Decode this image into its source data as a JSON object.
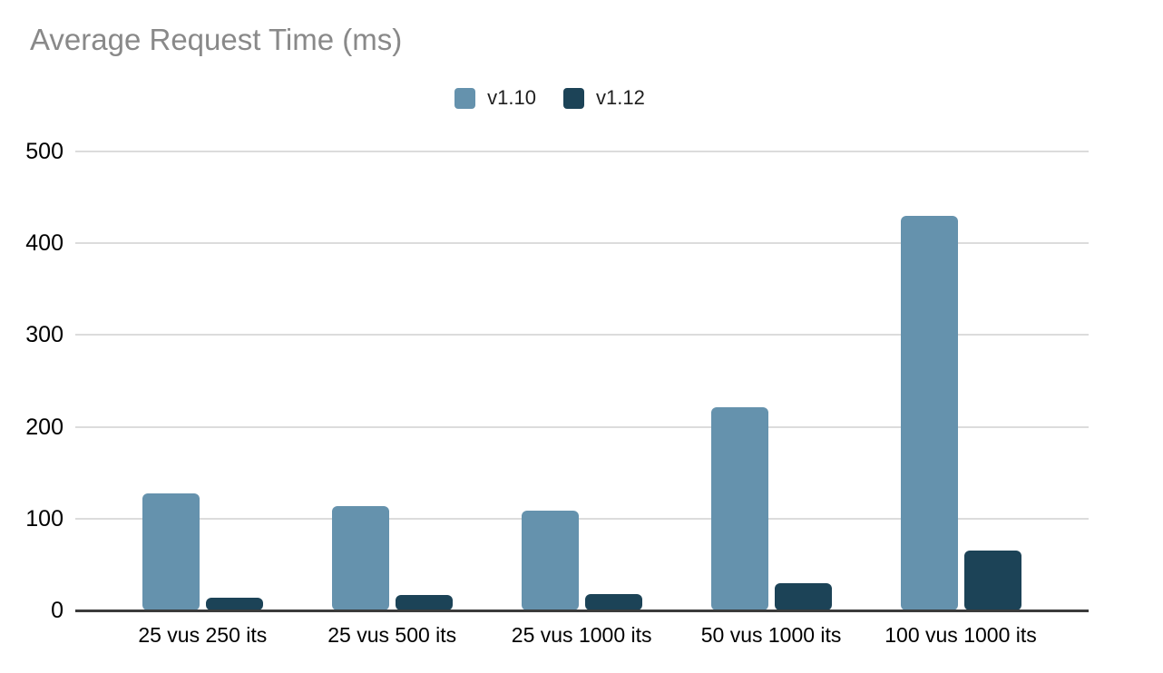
{
  "chart_data": {
    "type": "bar",
    "title": "Average Request Time (ms)",
    "xlabel": "",
    "ylabel": "",
    "categories": [
      "25 vus 250 its",
      "25 vus 500 its",
      "25 vus 1000 its",
      "50 vus 1000 its",
      "100 vus 1000 its"
    ],
    "series": [
      {
        "name": "v1.10",
        "color": "#6592ad",
        "values": [
          127,
          114,
          109,
          221,
          430
        ]
      },
      {
        "name": "v1.12",
        "color": "#1c4357",
        "values": [
          14,
          17,
          18,
          30,
          65
        ]
      }
    ],
    "ylim": [
      0,
      500
    ],
    "yticks": [
      0,
      100,
      200,
      300,
      400,
      500
    ],
    "grid": true,
    "legend_position": "top-center",
    "colors": {
      "title_text": "#898989",
      "axis_text": "#000000",
      "gridline": "#dcdcdc",
      "axis_line": "#3b3b3b",
      "background": "#ffffff"
    }
  }
}
